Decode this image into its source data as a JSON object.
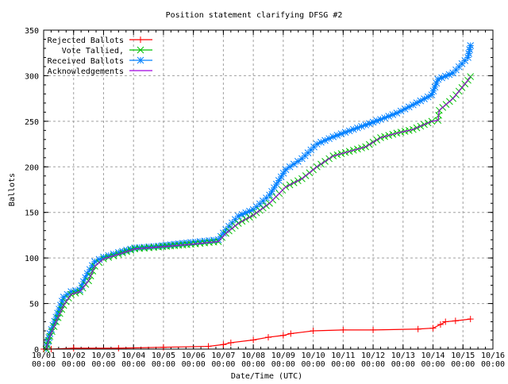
{
  "chart_data": {
    "type": "line",
    "title": "Position statement clarifying DFSG #2",
    "xlabel": "Date/Time (UTC)",
    "ylabel": "Ballots",
    "xlim": [
      "10/01 00:00",
      "10/16 00:00"
    ],
    "ylim": [
      0,
      350
    ],
    "grid": true,
    "legend_placement": "top-left",
    "x_ticks": [
      "10/01",
      "10/02",
      "10/03",
      "10/04",
      "10/05",
      "10/06",
      "10/07",
      "10/08",
      "10/09",
      "10/10",
      "10/11",
      "10/12",
      "10/13",
      "10/14",
      "10/15",
      "10/16"
    ],
    "x_tick_time": "00:00",
    "y_ticks": [
      0,
      50,
      100,
      150,
      200,
      250,
      300,
      350
    ],
    "series": [
      {
        "name": "Rejected Ballots",
        "color": "#ff0000",
        "marker": "plus",
        "points": [
          [
            "10/01 00:00",
            0
          ],
          [
            "10/01 06:00",
            0
          ],
          [
            "10/02 00:00",
            1
          ],
          [
            "10/03 12:00",
            1
          ],
          [
            "10/05 00:00",
            2
          ],
          [
            "10/06 12:00",
            3
          ],
          [
            "10/07 00:00",
            5
          ],
          [
            "10/07 06:00",
            7
          ],
          [
            "10/08 00:00",
            10
          ],
          [
            "10/08 12:00",
            13
          ],
          [
            "10/09 00:00",
            15
          ],
          [
            "10/09 06:00",
            17
          ],
          [
            "10/10 00:00",
            20
          ],
          [
            "10/11 00:00",
            21
          ],
          [
            "10/12 00:00",
            21
          ],
          [
            "10/13 12:00",
            22
          ],
          [
            "10/14 00:00",
            23
          ],
          [
            "10/14 06:00",
            27
          ],
          [
            "10/14 10:00",
            30
          ],
          [
            "10/14 18:00",
            31
          ],
          [
            "10/15 06:00",
            33
          ]
        ]
      },
      {
        "name": "Vote Tallied,",
        "color": "#00c000",
        "marker": "x",
        "points": [
          [
            "10/01 02:00",
            0
          ],
          [
            "10/01 05:00",
            14
          ],
          [
            "10/01 10:00",
            30
          ],
          [
            "10/01 16:00",
            48
          ],
          [
            "10/01 22:00",
            60
          ],
          [
            "10/02 05:00",
            63
          ],
          [
            "10/02 12:00",
            75
          ],
          [
            "10/02 17:00",
            91
          ],
          [
            "10/03 00:00",
            99
          ],
          [
            "10/03 12:00",
            104
          ],
          [
            "10/04 01:00",
            110
          ],
          [
            "10/04 20:00",
            112
          ],
          [
            "10/05 22:00",
            115
          ],
          [
            "10/06 20:00",
            118
          ],
          [
            "10/07 02:00",
            127
          ],
          [
            "10/07 12:00",
            138
          ],
          [
            "10/08 00:00",
            147
          ],
          [
            "10/08 13:00",
            160
          ],
          [
            "10/09 02:00",
            178
          ],
          [
            "10/09 15:00",
            187
          ],
          [
            "10/10 03:00",
            200
          ],
          [
            "10/10 16:00",
            212
          ],
          [
            "10/11 18:00",
            222
          ],
          [
            "10/12 06:00",
            232
          ],
          [
            "10/12 19:00",
            237
          ],
          [
            "10/13 08:00",
            241
          ],
          [
            "10/13 23:00",
            250
          ],
          [
            "10/14 04:00",
            251
          ],
          [
            "10/14 05:00",
            262
          ],
          [
            "10/14 16:00",
            275
          ],
          [
            "10/15 04:00",
            295
          ],
          [
            "10/15 06:00",
            299
          ]
        ]
      },
      {
        "name": "Received Ballots",
        "color": "#0080ff",
        "marker": "star",
        "points": [
          [
            "10/01 02:00",
            0
          ],
          [
            "10/01 05:00",
            17
          ],
          [
            "10/01 10:00",
            35
          ],
          [
            "10/01 16:00",
            57
          ],
          [
            "10/01 22:00",
            63
          ],
          [
            "10/02 05:00",
            65
          ],
          [
            "10/02 11:00",
            83
          ],
          [
            "10/02 17:00",
            96
          ],
          [
            "10/03 00:00",
            101
          ],
          [
            "10/03 12:00",
            106
          ],
          [
            "10/04 01:00",
            111
          ],
          [
            "10/04 20:00",
            113
          ],
          [
            "10/05 22:00",
            117
          ],
          [
            "10/06 20:00",
            120
          ],
          [
            "10/07 02:00",
            131
          ],
          [
            "10/07 12:00",
            146
          ],
          [
            "10/08 00:00",
            153
          ],
          [
            "10/08 13:00",
            169
          ],
          [
            "10/09 02:00",
            197
          ],
          [
            "10/09 15:00",
            209
          ],
          [
            "10/10 03:00",
            225
          ],
          [
            "10/10 16:00",
            233
          ],
          [
            "10/11 18:00",
            246
          ],
          [
            "10/12 06:00",
            252
          ],
          [
            "10/12 19:00",
            259
          ],
          [
            "10/13 08:00",
            268
          ],
          [
            "10/13 23:00",
            279
          ],
          [
            "10/14 04:00",
            296
          ],
          [
            "10/14 16:00",
            303
          ],
          [
            "10/15 04:00",
            320
          ],
          [
            "10/15 06:00",
            333
          ]
        ]
      },
      {
        "name": "Acknowledgements",
        "color": "#a000e0",
        "marker": "none",
        "points": [
          [
            "10/01 02:00",
            0
          ],
          [
            "10/01 05:00",
            14
          ],
          [
            "10/01 10:00",
            30
          ],
          [
            "10/01 16:00",
            48
          ],
          [
            "10/01 22:00",
            60
          ],
          [
            "10/02 05:00",
            63
          ],
          [
            "10/02 12:00",
            75
          ],
          [
            "10/02 17:00",
            91
          ],
          [
            "10/03 00:00",
            99
          ],
          [
            "10/03 12:00",
            104
          ],
          [
            "10/04 01:00",
            110
          ],
          [
            "10/04 20:00",
            112
          ],
          [
            "10/05 22:00",
            115
          ],
          [
            "10/06 20:00",
            118
          ],
          [
            "10/07 02:00",
            127
          ],
          [
            "10/07 12:00",
            138
          ],
          [
            "10/08 00:00",
            147
          ],
          [
            "10/08 13:00",
            160
          ],
          [
            "10/09 02:00",
            178
          ],
          [
            "10/09 15:00",
            187
          ],
          [
            "10/10 03:00",
            200
          ],
          [
            "10/10 16:00",
            212
          ],
          [
            "10/11 18:00",
            222
          ],
          [
            "10/12 06:00",
            232
          ],
          [
            "10/12 19:00",
            237
          ],
          [
            "10/13 08:00",
            241
          ],
          [
            "10/13 23:00",
            250
          ],
          [
            "10/14 04:00",
            251
          ],
          [
            "10/14 05:00",
            262
          ],
          [
            "10/14 16:00",
            275
          ],
          [
            "10/15 04:00",
            295
          ],
          [
            "10/15 06:00",
            299
          ]
        ]
      }
    ]
  }
}
